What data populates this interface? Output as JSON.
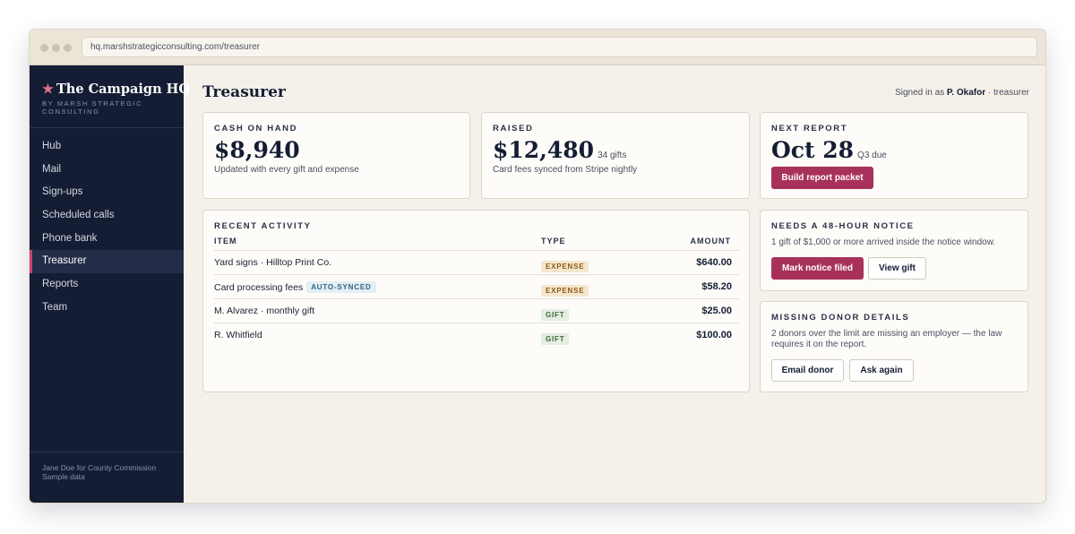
{
  "browser": {
    "url": "hq.marshstrategicconsulting.com/treasurer"
  },
  "sidebar": {
    "brand_star": "★",
    "brand_title": "The Campaign HQ",
    "brand_sub": "BY MARSH STRATEGIC CONSULTING",
    "items": [
      {
        "label": "Hub"
      },
      {
        "label": "Mail"
      },
      {
        "label": "Sign-ups"
      },
      {
        "label": "Scheduled calls"
      },
      {
        "label": "Phone bank"
      },
      {
        "label": "Treasurer"
      },
      {
        "label": "Reports"
      },
      {
        "label": "Team"
      }
    ],
    "footer_line1": "Jane Doe for County Commission",
    "footer_line2": "Sample data"
  },
  "header": {
    "title": "Treasurer",
    "signed_prefix": "Signed in as",
    "user": "P. Okafor",
    "role_suffix": "· treasurer"
  },
  "cash": {
    "label": "CASH ON HAND",
    "value": "$8,940",
    "sub": "Updated with every gift and expense"
  },
  "raised": {
    "label": "RAISED",
    "value": "$12,480",
    "suffix": "34 gifts",
    "sub": "Card fees synced from Stripe nightly"
  },
  "next_report": {
    "label": "NEXT REPORT",
    "value": "Oct 28",
    "suffix": "Q3 due",
    "button": "Build report packet"
  },
  "activity": {
    "label": "RECENT ACTIVITY",
    "columns": {
      "item": "ITEM",
      "type": "TYPE",
      "amount": "AMOUNT"
    },
    "rows": [
      {
        "item": "Yard signs · Hilltop Print Co.",
        "type": "EXPENSE",
        "amount": "$640.00"
      },
      {
        "item": "Card processing fees",
        "tag": "AUTO-SYNCED",
        "type": "EXPENSE",
        "amount": "$58.20"
      },
      {
        "item": "M. Alvarez · monthly gift",
        "type": "GIFT",
        "amount": "$25.00"
      },
      {
        "item": "R. Whitfield",
        "type": "GIFT",
        "amount": "$100.00"
      }
    ]
  },
  "notice": {
    "label": "NEEDS A 48-HOUR NOTICE",
    "text": "1 gift of $1,000 or more arrived inside the notice window.",
    "primary": "Mark notice filed",
    "secondary": "View gift"
  },
  "missing": {
    "label": "MISSING DONOR DETAILS",
    "text": "2 donors over the limit are missing an employer — the law requires it on the report.",
    "primary": "Email donor",
    "secondary": "Ask again"
  },
  "colors": {
    "sidebar_bg": "#141d33",
    "accent": "#a8315b",
    "page_bg": "#f5f1ea"
  }
}
